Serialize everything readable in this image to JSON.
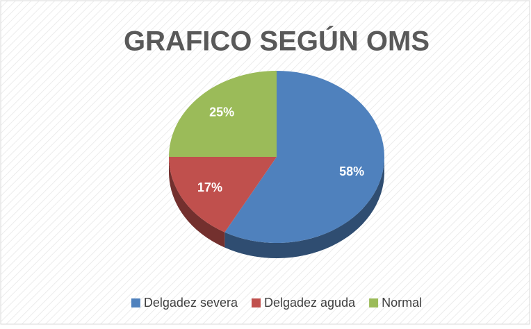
{
  "chart_data": {
    "type": "pie",
    "title": "GRAFICO SEGÚN OMS",
    "categories": [
      "Delgadez severa",
      "Delgadez aguda",
      "Normal"
    ],
    "values": [
      58,
      17,
      25
    ],
    "value_labels": [
      "58%",
      "17%",
      "25%"
    ],
    "colors": [
      "#4f81bd",
      "#c0504d",
      "#9bbb59"
    ],
    "legend": "bottom"
  }
}
